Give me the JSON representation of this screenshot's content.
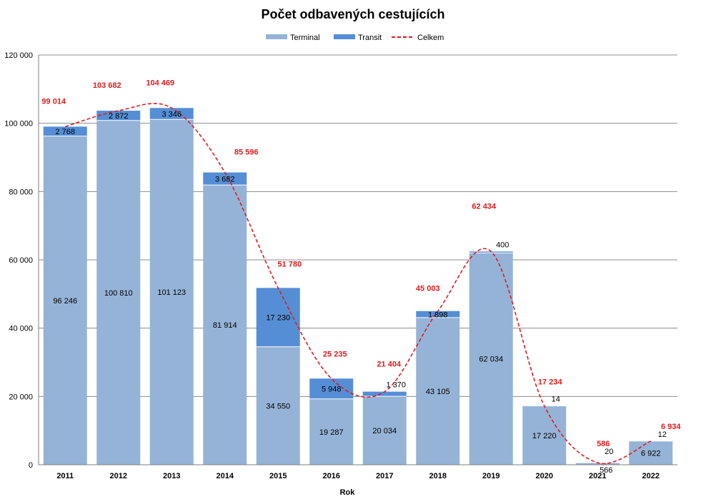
{
  "colors": {
    "terminal": "#95b3d7",
    "transit": "#558ed5",
    "total": "#e41a1c",
    "grid": "#8c8c8c"
  },
  "chart_data": {
    "type": "bar",
    "stacked": true,
    "title": "Počet odbavených cestujících",
    "xlabel": "Rok",
    "ylabel": "",
    "ylim": [
      0,
      120000
    ],
    "yticks": [
      0,
      20000,
      40000,
      60000,
      80000,
      100000,
      120000
    ],
    "ytick_labels": [
      "0",
      "20 000",
      "40 000",
      "60 000",
      "80 000",
      "100 000",
      "120 000"
    ],
    "grid": true,
    "legend_position": "top-center",
    "categories": [
      "2011",
      "2012",
      "2013",
      "2014",
      "2015",
      "2016",
      "2017",
      "2018",
      "2019",
      "2020",
      "2021",
      "2022"
    ],
    "series": [
      {
        "name": "Terminal",
        "values": [
          96246,
          100810,
          101123,
          81914,
          34550,
          19287,
          20034,
          43105,
          62034,
          17220,
          566,
          6922
        ],
        "labels": [
          "96 246",
          "100 810",
          "101 123",
          "81 914",
          "34 550",
          "19 287",
          "20 034",
          "43 105",
          "62 034",
          "17 220",
          "566",
          "6 922"
        ]
      },
      {
        "name": "Transit",
        "values": [
          2768,
          2872,
          3346,
          3682,
          17230,
          5948,
          1370,
          1898,
          400,
          14,
          20,
          12
        ],
        "labels": [
          "2 768",
          "2 872",
          "3 346",
          "3 682",
          "17 230",
          "5 948",
          "1 370",
          "1 898",
          "400",
          "14",
          "20",
          "12"
        ]
      },
      {
        "name": "Celkem",
        "type": "line",
        "style": "dashed",
        "values": [
          99014,
          103682,
          104469,
          85596,
          51780,
          25235,
          21404,
          45003,
          62434,
          17234,
          586,
          6934
        ],
        "labels": [
          "99 014",
          "103 682",
          "104 469",
          "85 596",
          "51 780",
          "25 235",
          "21 404",
          "45 003",
          "62 434",
          "17 234",
          "586",
          "6 934"
        ]
      }
    ]
  }
}
